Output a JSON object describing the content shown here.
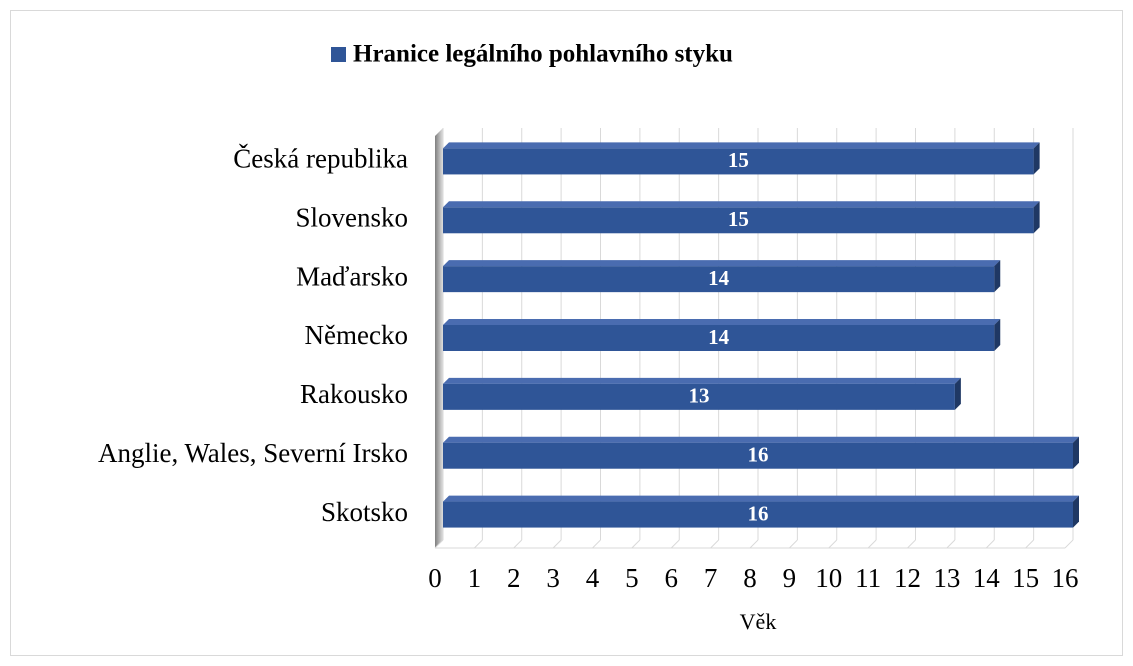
{
  "chart_data": {
    "type": "bar",
    "orientation": "horizontal",
    "categories": [
      "Česká republika",
      "Slovensko",
      "Maďarsko",
      "Německo",
      "Rakousko",
      "Anglie, Wales, Severní Irsko",
      "Skotsko"
    ],
    "series": [
      {
        "name": "Hranice legálního pohlavního styku",
        "color": "#2f5597",
        "values": [
          15,
          15,
          14,
          14,
          13,
          16,
          16
        ]
      }
    ],
    "x_label": "Věk",
    "xlim": [
      0,
      16
    ],
    "xticks": [
      0,
      1,
      2,
      3,
      4,
      5,
      6,
      7,
      8,
      9,
      10,
      11,
      12,
      13,
      14,
      15,
      16
    ],
    "grid": true,
    "legend": "top"
  }
}
